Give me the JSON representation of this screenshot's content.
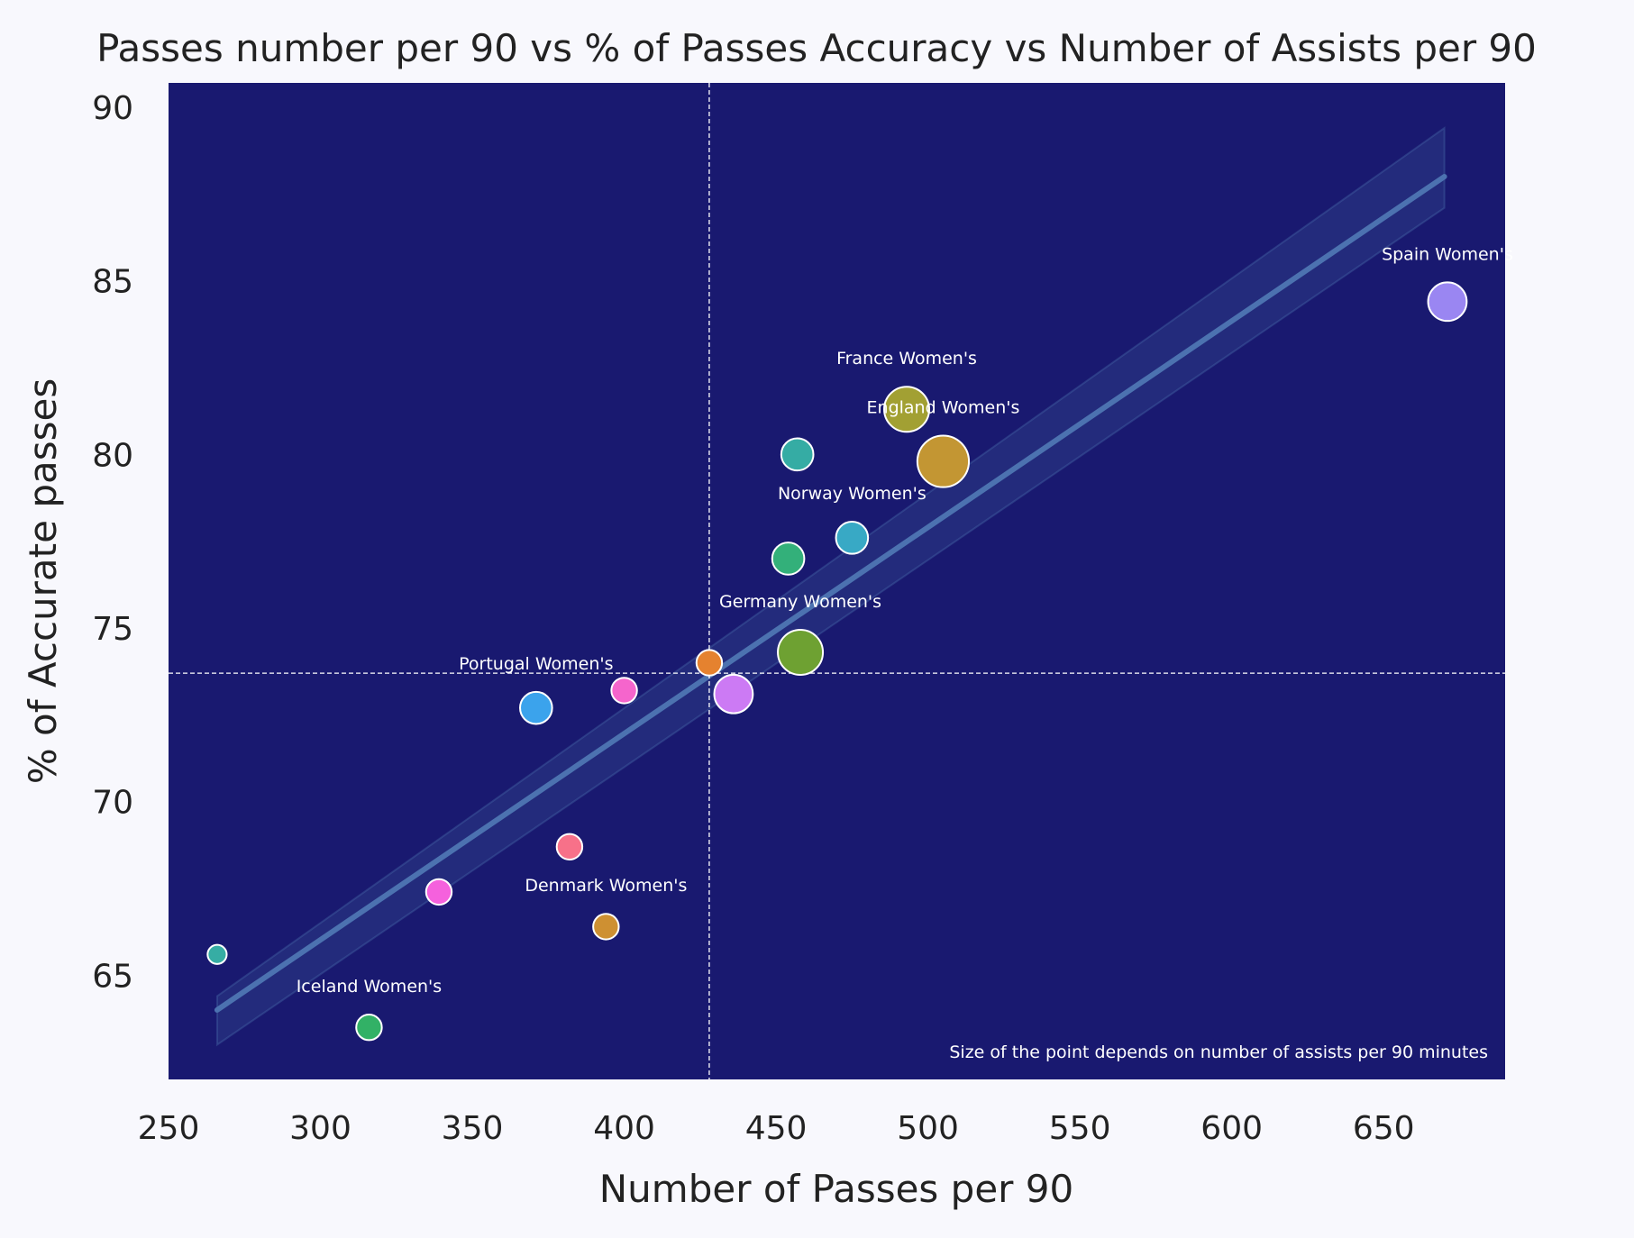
{
  "chart_data": {
    "type": "scatter",
    "title": "Passes number per 90 vs % of Passes Accuracy vs Number of Assists per 90",
    "xlabel": "Number of Passes per 90",
    "ylabel": "% of Accurate passes",
    "xlim": [
      250,
      690
    ],
    "ylim": [
      62,
      90.7
    ],
    "xticks": [
      250,
      300,
      350,
      400,
      450,
      500,
      550,
      600,
      650
    ],
    "yticks": [
      65,
      70,
      75,
      80,
      85,
      90
    ],
    "grid": false,
    "background": "#191970",
    "mean_lines": {
      "x": 428,
      "y": 73.7
    },
    "regression": {
      "x": [
        266,
        670
      ],
      "y": [
        64.0,
        88.0
      ],
      "ci_lower": [
        63.0,
        87.1
      ],
      "ci_upper": [
        64.4,
        89.4
      ]
    },
    "annotation": "Size of the point depends on number of assists per 90 minutes",
    "size_encoding": "assists per 90",
    "points": [
      {
        "x": 266,
        "y": 65.6,
        "size": 1,
        "color": "#36ada4",
        "label": ""
      },
      {
        "x": 316,
        "y": 63.5,
        "size": 2,
        "color": "#32b166",
        "label": "Iceland Women's"
      },
      {
        "x": 339,
        "y": 67.4,
        "size": 2,
        "color": "#f561dd",
        "label": ""
      },
      {
        "x": 371,
        "y": 72.7,
        "size": 3,
        "color": "#3ba3ec",
        "label": "Portugal Women's"
      },
      {
        "x": 382,
        "y": 68.7,
        "size": 2,
        "color": "#f77189",
        "label": ""
      },
      {
        "x": 394,
        "y": 66.4,
        "size": 2,
        "color": "#ce9032",
        "label": "Denmark Women's"
      },
      {
        "x": 400,
        "y": 73.2,
        "size": 2,
        "color": "#f565cc",
        "label": ""
      },
      {
        "x": 428,
        "y": 74.0,
        "size": 2,
        "color": "#e5822f",
        "label": ""
      },
      {
        "x": 436,
        "y": 73.1,
        "size": 4,
        "color": "#cc7af4",
        "label": ""
      },
      {
        "x": 454,
        "y": 77.0,
        "size": 3,
        "color": "#33b07a",
        "label": ""
      },
      {
        "x": 457,
        "y": 80.0,
        "size": 3,
        "color": "#35aca4",
        "label": ""
      },
      {
        "x": 458,
        "y": 74.3,
        "size": 5,
        "color": "#6ea132",
        "label": "Germany Women's"
      },
      {
        "x": 475,
        "y": 77.6,
        "size": 3,
        "color": "#38a9c5",
        "label": "Norway Women's"
      },
      {
        "x": 493,
        "y": 81.3,
        "size": 5,
        "color": "#a2a033",
        "label": "France Women's"
      },
      {
        "x": 505,
        "y": 79.8,
        "size": 6,
        "color": "#c39633",
        "label": "England Women's"
      },
      {
        "x": 671,
        "y": 84.4,
        "size": 4,
        "color": "#9a86f2",
        "label": "Spain Women's"
      }
    ]
  }
}
